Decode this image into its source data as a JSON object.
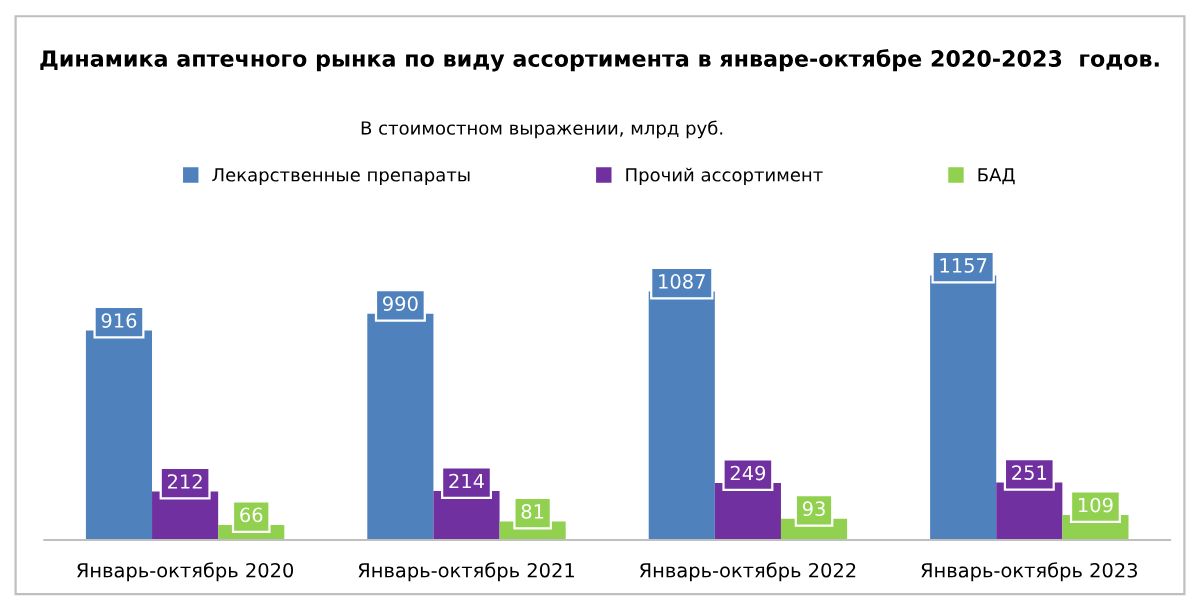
{
  "chart_data": {
    "type": "bar",
    "title": "Динамика аптечного рынка по виду ассортимента в январе-октябре 2020-2023  годов.",
    "subtitle": "В стоимостном выражении, млрд руб.",
    "categories": [
      "Январь-октябрь 2020",
      "Январь-октябрь 2021",
      "Январь-октябрь 2022",
      "Январь-октябрь 2023"
    ],
    "series": [
      {
        "name": "Лекарственные препараты",
        "color": "#4f81bd",
        "values": [
          916,
          990,
          1087,
          1157
        ]
      },
      {
        "name": "Прочий ассортимент",
        "color": "#7030a0",
        "values": [
          212,
          214,
          249,
          251
        ]
      },
      {
        "name": "БАД",
        "color": "#92d050",
        "values": [
          66,
          81,
          93,
          109
        ]
      }
    ],
    "data_labels": true,
    "legend": "top",
    "grid": false
  }
}
